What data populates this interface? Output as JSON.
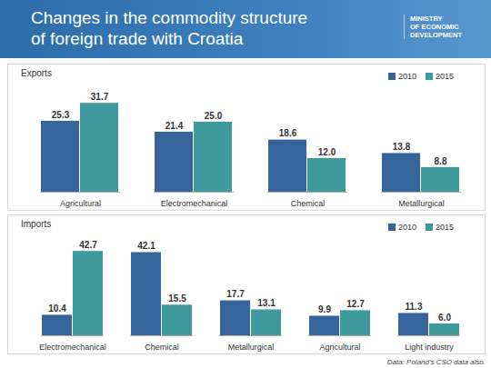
{
  "header": {
    "title": [
      "Changes in the commodity structure",
      "of foreign trade with Croatia"
    ],
    "logo_text": [
      "MINISTRY",
      "OF ECONOMIC",
      "DEVELOPMENT"
    ]
  },
  "caption": "Data: Poland's CSO data also.",
  "chart_data": [
    {
      "type": "bar",
      "title": "Exports",
      "categories": [
        "Agricultural",
        "Electromechanical",
        "Chemical",
        "Metallurgical"
      ],
      "series": [
        {
          "name": "2010",
          "color": "#35659a",
          "values": [
            25.3,
            21.4,
            18.6,
            13.8
          ]
        },
        {
          "name": "2015",
          "color": "#3e9a9c",
          "values": [
            31.7,
            25.0,
            12.0,
            8.8
          ],
          "value_labels": [
            "31.7",
            "25.0",
            "12.0",
            "8.8"
          ]
        }
      ],
      "ylim": [
        0,
        35
      ],
      "data_labels": true,
      "tick_labels": "x",
      "legend": "top-right",
      "grid": false
    },
    {
      "type": "bar",
      "title": "Imports",
      "categories": [
        "Electromechanical",
        "Chemical",
        "Metallurgical",
        "Agricultural",
        "Light industry"
      ],
      "series": [
        {
          "name": "2010",
          "color": "#35659a",
          "values": [
            10.4,
            42.1,
            17.7,
            9.9,
            11.3
          ]
        },
        {
          "name": "2015",
          "color": "#3e9a9c",
          "values": [
            42.7,
            15.5,
            13.1,
            12.7,
            6.0
          ],
          "value_labels": [
            "42.7",
            "15.5",
            "13.1",
            "12.7",
            "6.0"
          ]
        }
      ],
      "ylim": [
        0,
        46
      ],
      "data_labels": true,
      "tick_labels": "x",
      "legend": "top-right",
      "grid": false
    }
  ]
}
